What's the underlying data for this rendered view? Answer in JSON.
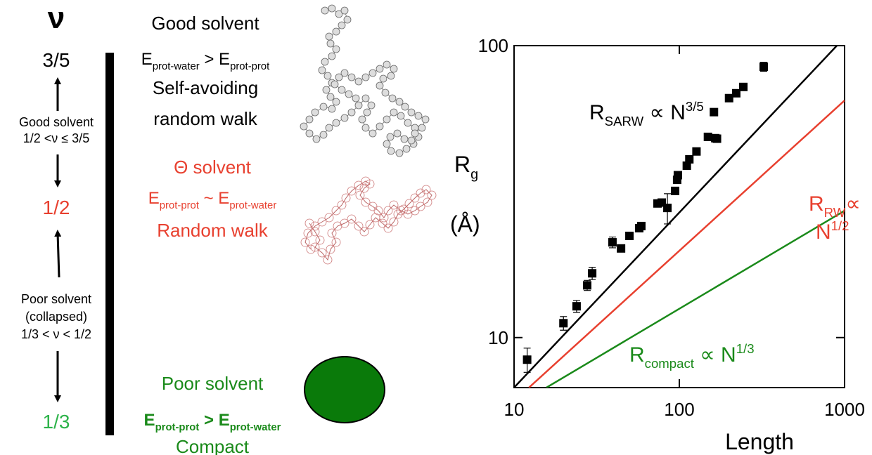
{
  "diagram": {
    "nu_symbol": "ν",
    "exponents": [
      "3/5",
      "1/2",
      "1/3"
    ],
    "good_range": [
      "Good solvent",
      "1/2 <ν ≤ 3/5"
    ],
    "poor_range": [
      "Poor solvent",
      "(collapsed)",
      "1/3 < ν < 1/2"
    ],
    "regimes": [
      {
        "title": "Good solvent",
        "condition": [
          {
            "text": "E"
          },
          {
            "sub": "prot-water"
          },
          {
            "text": " > E"
          },
          {
            "sub": "prot-prot"
          }
        ],
        "description": [
          "Self-avoiding",
          "random walk"
        ]
      },
      {
        "title": "Θ solvent",
        "condition": [
          {
            "text": "E"
          },
          {
            "sub": "prot-prot"
          },
          {
            "text": " ~ E"
          },
          {
            "sub": "prot-water"
          }
        ],
        "description": [
          "Random walk"
        ]
      },
      {
        "title": "Poor solvent",
        "condition": [
          {
            "text": "E"
          },
          {
            "sub": "prot-prot"
          },
          {
            "text": " > E"
          },
          {
            "sub": "prot-water"
          }
        ],
        "description": [
          "Compact"
        ]
      }
    ]
  },
  "chart_data": {
    "type": "scatter",
    "log_x": true,
    "log_y": true,
    "xlim": [
      10,
      1000
    ],
    "ylim": [
      6.74,
      100
    ],
    "xticks": [
      10,
      100,
      1000
    ],
    "yticks": [
      10,
      100
    ],
    "xlabel": "Length",
    "ylabel": [
      [
        {
          "text": "R"
        },
        {
          "sub": "g"
        }
      ],
      [
        {
          "text": "(Å)"
        }
      ]
    ],
    "color": "#000000",
    "x": [
      12.0,
      19.9,
      23.9,
      27.7,
      29.7,
      39.4,
      44.4,
      49.9,
      57.2,
      58.9,
      73.8,
      78.3,
      84.7,
      94.3,
      97.0,
      98,
      111,
      115,
      127,
      149,
      162,
      165,
      169,
      200,
      221,
      244,
      324
    ],
    "values": [
      8.4,
      11.2,
      12.8,
      15.1,
      16.6,
      21.2,
      20.2,
      22.3,
      23.7,
      24.1,
      28.8,
      29.0,
      27.8,
      31.8,
      34.7,
      36,
      38.8,
      40.8,
      43.4,
      48.7,
      59.2,
      48.2,
      48.0,
      66.1,
      68.7,
      72.2,
      84.7
    ],
    "errors": [
      0.8,
      0.6,
      0.6,
      0.6,
      0.8,
      0.9,
      0.5,
      0.5,
      0.6,
      0.5,
      0.6,
      0.6,
      3.3,
      0.8,
      0.8,
      0.6,
      0.8,
      0.8,
      0.6,
      0.8,
      1.5,
      0.8,
      0.6,
      1.5,
      0.8,
      0.8,
      3
    ],
    "lines": [
      {
        "color": "#000000",
        "x": [
          10,
          898
        ],
        "values": [
          6.74,
          100
        ]
      },
      {
        "color": "#e8402f",
        "x": [
          12.3,
          1000
        ],
        "values": [
          6.74,
          64.9
        ]
      },
      {
        "color": "#1a8a1a",
        "x": [
          15.7,
          1000
        ],
        "values": [
          6.74,
          27.2
        ]
      }
    ],
    "annotations": [
      {
        "color": "#000000",
        "lines": [
          [
            {
              "text": "R"
            },
            {
              "sub": "SARW"
            },
            {
              "text": " ∝ N"
            },
            {
              "sup": "3/5"
            }
          ]
        ]
      },
      {
        "color": "#e8402f",
        "lines": [
          [
            {
              "text": "R"
            },
            {
              "sub": "RW"
            },
            {
              "text": "∝"
            }
          ],
          [
            {
              "text": "N"
            },
            {
              "sup": "1/2"
            }
          ]
        ]
      },
      {
        "color": "#1a8a1a",
        "lines": [
          [
            {
              "text": "R"
            },
            {
              "sub": "compact"
            },
            {
              "text": " ∝ N"
            },
            {
              "sup": "1/3"
            }
          ]
        ]
      }
    ]
  }
}
